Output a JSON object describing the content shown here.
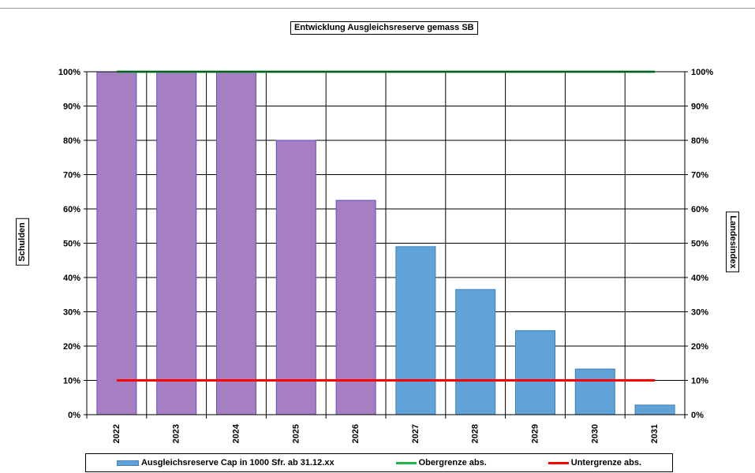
{
  "chart_data": {
    "type": "bar",
    "title": "Entwicklung Ausgleichsreserve gemass SB",
    "ylabel": "Schulden",
    "ylabel_right": "Landesindex",
    "categories": [
      "2022",
      "2023",
      "2024",
      "2025",
      "2026",
      "2027",
      "2028",
      "2029",
      "2030",
      "2031"
    ],
    "series": [
      {
        "name": "Ausgleichsreserve Cap in 1000 Sfr. ab 31.12.xx",
        "kind": "bar",
        "values": [
          100,
          100,
          100,
          80,
          62.5,
          49,
          36.5,
          24.5,
          13.3,
          2.8
        ],
        "colors": [
          "#a57fc2",
          "#a57fc2",
          "#a57fc2",
          "#a57fc2",
          "#a57fc2",
          "#5fa3d8",
          "#5fa3d8",
          "#5fa3d8",
          "#5fa3d8",
          "#5fa3d8"
        ]
      },
      {
        "name": "Obergrenze abs.",
        "kind": "line",
        "values": [
          100,
          100,
          100,
          100,
          100,
          100,
          100,
          100,
          100,
          100
        ],
        "color": "#22b24c"
      },
      {
        "name": "Untergrenze abs.",
        "kind": "line",
        "values": [
          10,
          10,
          10,
          10,
          10,
          10,
          10,
          10,
          10,
          10
        ],
        "color": "#ff0000"
      }
    ],
    "ylim": [
      0,
      100
    ],
    "yticks": [
      "0%",
      "10%",
      "20%",
      "30%",
      "40%",
      "50%",
      "60%",
      "70%",
      "80%",
      "90%",
      "100%"
    ],
    "grid": true,
    "legend_position": "bottom"
  }
}
